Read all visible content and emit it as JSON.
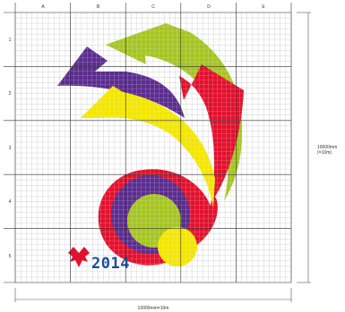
{
  "grid": {
    "column_labels": [
      "A",
      "B",
      "C",
      "D",
      "E"
    ],
    "row_labels": [
      "1",
      "2",
      "3",
      "4",
      "5"
    ]
  },
  "dimensions": {
    "width_label": "10000mm=10m",
    "height_label_line1": "10000mm",
    "height_label_line2": "(=10m)"
  },
  "logo": {
    "year_text": "2014"
  },
  "colors": {
    "purple": "#5b2d8f",
    "green": "#a6c523",
    "yellow": "#f3e600",
    "red": "#e2112d",
    "blue": "#1b4f9c",
    "grid_line": "#bfbfbf",
    "major_line": "#333333"
  }
}
